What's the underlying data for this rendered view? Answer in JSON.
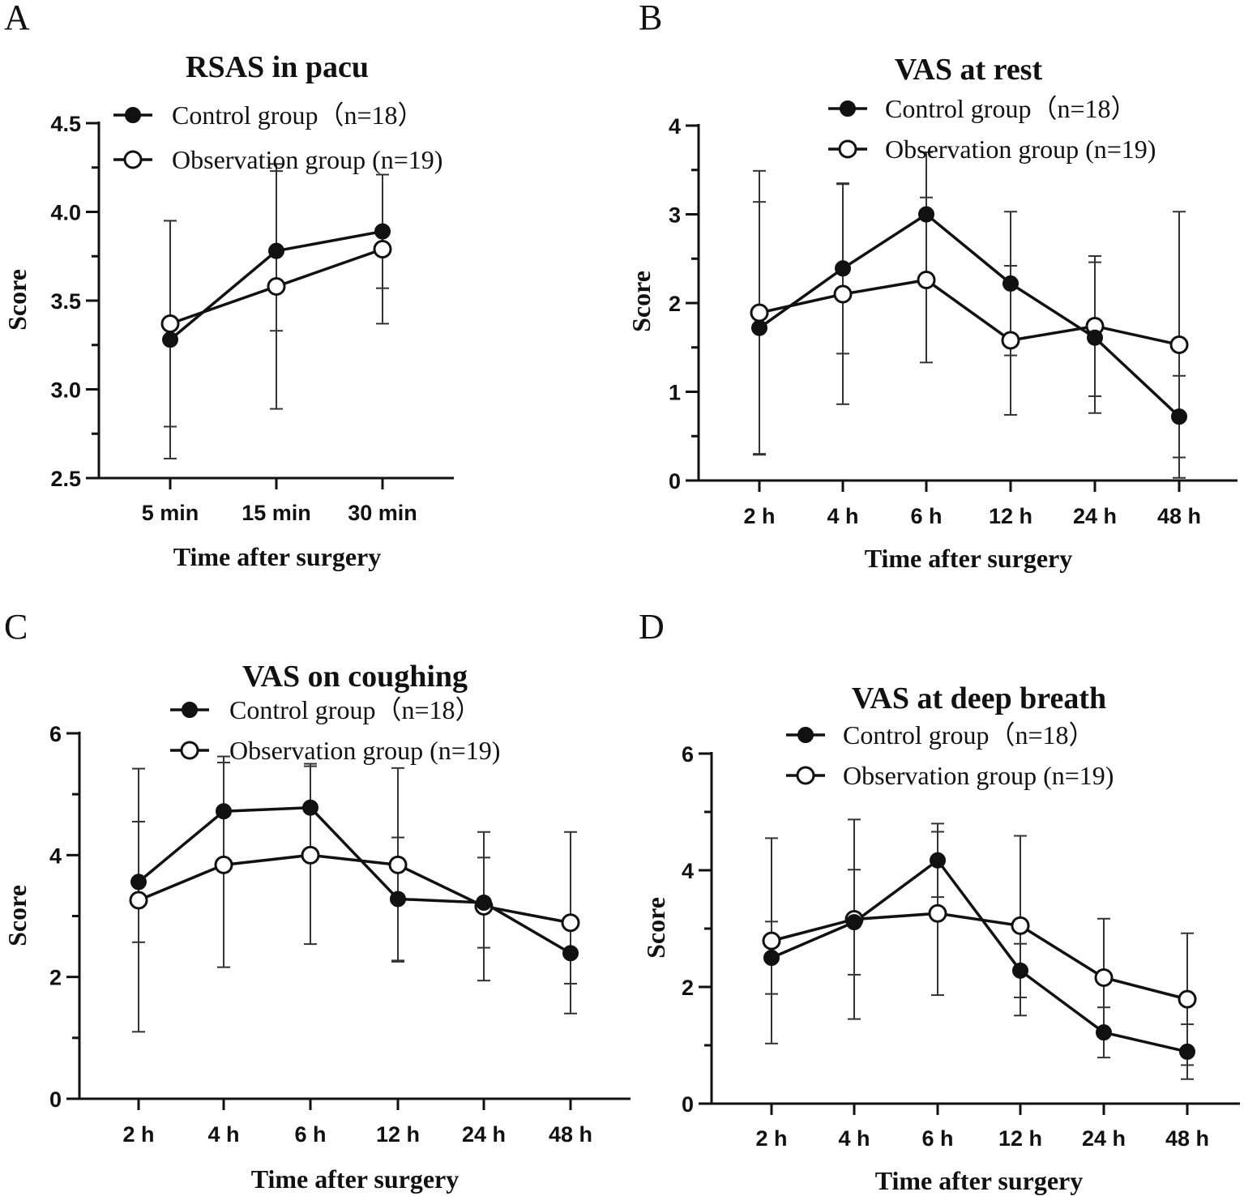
{
  "chart_data": [
    {
      "panel": "A",
      "type": "line",
      "title": "RSAS in pacu",
      "xlabel": "Time after surgery",
      "ylabel": "Score",
      "categories": [
        "5 min",
        "15 min",
        "30 min"
      ],
      "ylim": [
        2.5,
        4.5
      ],
      "yticks": [
        2.5,
        3.0,
        3.5,
        4.0,
        4.5
      ],
      "ytick_labels": [
        "2.5",
        "3.0",
        "3.5",
        "4.0",
        "4.5"
      ],
      "legend": [
        "Control group（n=18）",
        "Observation group (n=19)"
      ],
      "series": [
        {
          "name": "Control group（n=18）",
          "marker": "filled",
          "values": [
            3.28,
            3.78,
            3.89
          ],
          "sd": [
            0.67,
            0.45,
            0.32
          ]
        },
        {
          "name": "Observation group (n=19)",
          "marker": "open",
          "values": [
            3.37,
            3.58,
            3.79
          ],
          "sd": [
            0.58,
            0.69,
            0.42
          ]
        }
      ]
    },
    {
      "panel": "B",
      "type": "line",
      "title": "VAS at rest",
      "xlabel": "Time after surgery",
      "ylabel": "Score",
      "categories": [
        "2 h",
        "4 h",
        "6 h",
        "12 h",
        "24 h",
        "48 h"
      ],
      "ylim": [
        0,
        4
      ],
      "yticks": [
        0,
        1,
        2,
        3,
        4
      ],
      "ytick_labels": [
        "0",
        "1",
        "2",
        "3",
        "4"
      ],
      "legend": [
        "Control group（n=18）",
        "Observation group (n=19)"
      ],
      "series": [
        {
          "name": "Control group（n=18）",
          "marker": "filled",
          "values": [
            1.72,
            2.39,
            3.0,
            2.22,
            1.61,
            0.72
          ],
          "sd": [
            1.42,
            0.96,
            0.7,
            0.81,
            0.85,
            0.46
          ]
        },
        {
          "name": "Observation group (n=19)",
          "marker": "open",
          "values": [
            1.89,
            2.1,
            2.26,
            1.58,
            1.74,
            1.53
          ],
          "sd": [
            1.6,
            1.24,
            0.93,
            0.84,
            0.79,
            1.5
          ]
        }
      ]
    },
    {
      "panel": "C",
      "type": "line",
      "title": "VAS on coughing",
      "xlabel": "Time after surgery",
      "ylabel": "Score",
      "categories": [
        "2 h",
        "4 h",
        "6 h",
        "12 h",
        "24 h",
        "48 h"
      ],
      "ylim": [
        0,
        6
      ],
      "yticks": [
        0,
        2,
        4,
        6
      ],
      "ytick_labels": [
        "0",
        "2",
        "4",
        "6"
      ],
      "legend": [
        "Control group（n=18）",
        "Observation group (n=19)"
      ],
      "series": [
        {
          "name": "Control group（n=18）",
          "marker": "filled",
          "values": [
            3.56,
            4.72,
            4.78,
            3.28,
            3.22,
            2.39
          ],
          "sd": [
            0.99,
            0.9,
            0.72,
            1.01,
            0.74,
            0.5
          ]
        },
        {
          "name": "Observation group (n=19)",
          "marker": "open",
          "values": [
            3.26,
            3.84,
            4.0,
            3.84,
            3.16,
            2.89
          ],
          "sd": [
            2.16,
            1.68,
            1.46,
            1.59,
            1.22,
            1.49
          ]
        }
      ]
    },
    {
      "panel": "D",
      "type": "line",
      "title": "VAS at deep breath",
      "xlabel": "Time after surgery",
      "ylabel": "Score",
      "categories": [
        "2 h",
        "4 h",
        "6 h",
        "12 h",
        "24 h",
        "48 h"
      ],
      "ylim": [
        0,
        6
      ],
      "yticks": [
        0,
        2,
        4,
        6
      ],
      "ytick_labels": [
        "0",
        "2",
        "4",
        "6"
      ],
      "legend": [
        "Control group（n=18）",
        "Observation group (n=19)"
      ],
      "series": [
        {
          "name": "Control group（n=18）",
          "marker": "filled",
          "values": [
            2.5,
            3.11,
            4.17,
            2.28,
            1.22,
            0.89
          ],
          "sd": [
            0.62,
            0.9,
            0.63,
            0.46,
            0.43,
            0.47
          ]
        },
        {
          "name": "Observation group (n=19)",
          "marker": "open",
          "values": [
            2.79,
            3.16,
            3.26,
            3.05,
            2.16,
            1.79
          ],
          "sd": [
            1.76,
            1.71,
            1.4,
            1.54,
            1.01,
            1.13
          ]
        }
      ]
    }
  ]
}
